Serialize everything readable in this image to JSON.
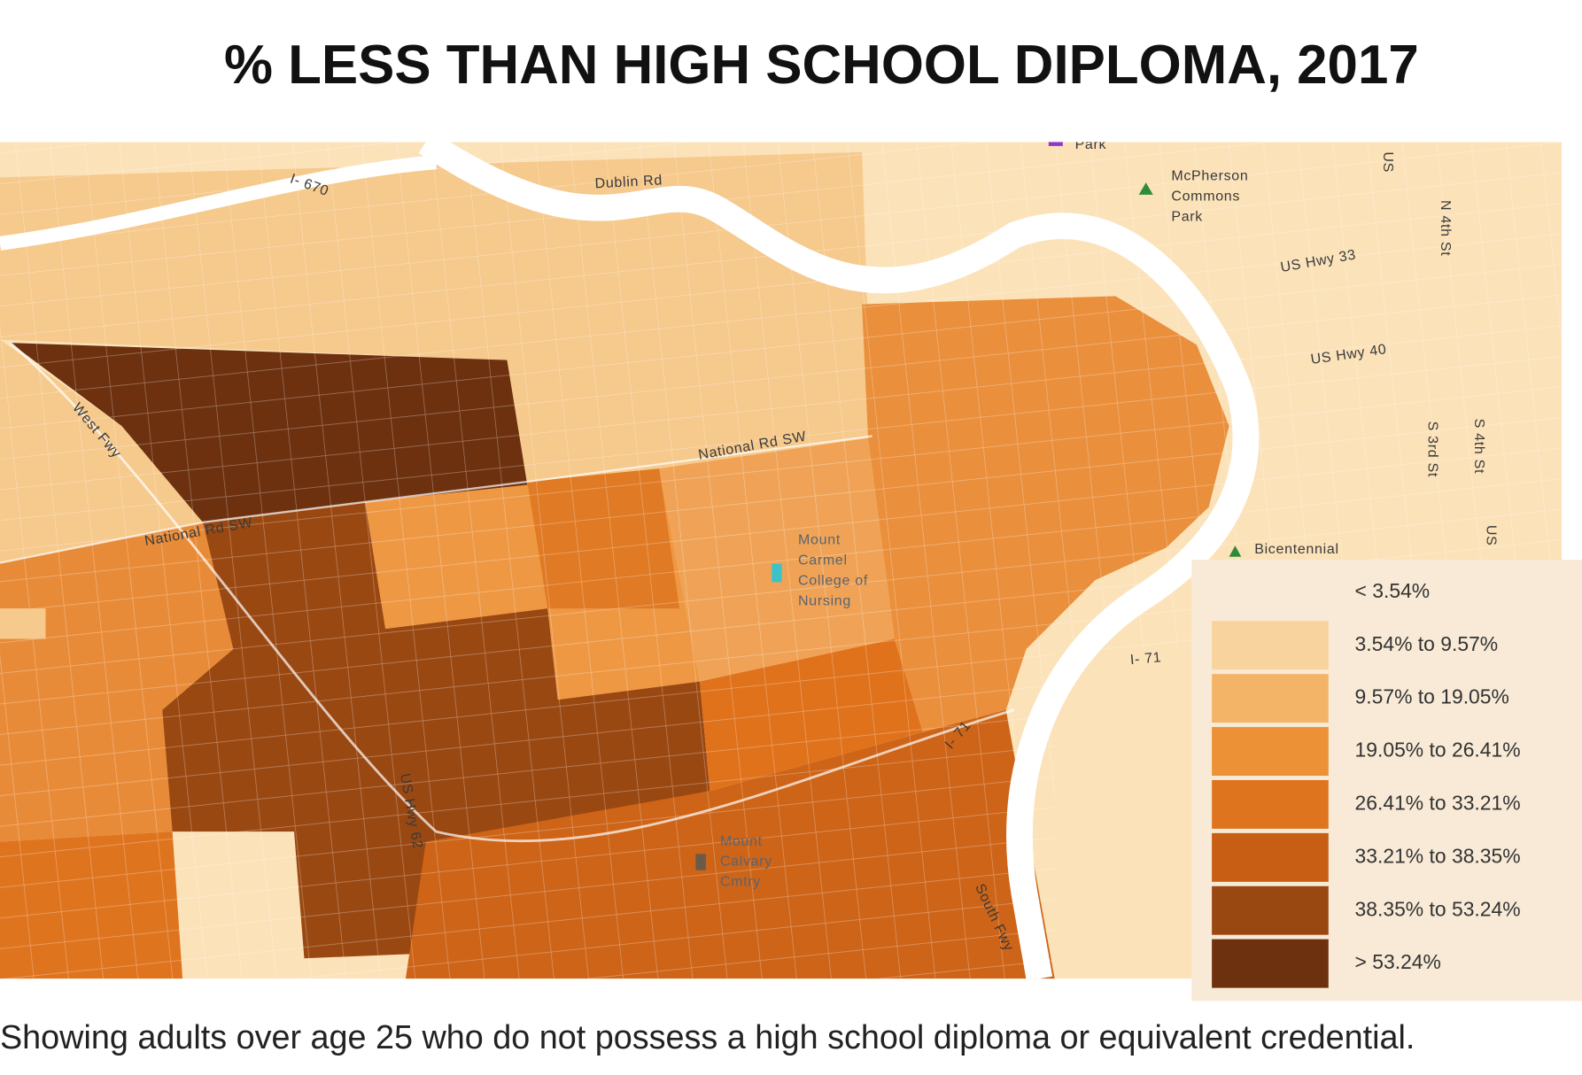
{
  "title": "% LESS THAN HIGH SCHOOL DIPLOMA, 2017",
  "caption": "Showing adults over age 25 who do not possess a high school diploma or equivalent credential.",
  "map_labels": [
    "I- 670",
    "Dublin Rd",
    "Park",
    "McPherson",
    "Commons",
    "Park",
    "US Hwy 33",
    "N 4th St",
    "US",
    "US Hwy 40",
    "S 3rd St",
    "S 4th St",
    "US",
    "West Fwy",
    "National Rd SW",
    "National Rd SW",
    "Mount",
    "Carmel",
    "College of",
    "Nursing",
    "Bicentennial",
    "I- 71",
    "I- 71",
    "US Hwy 62",
    "Mount",
    "Calvary",
    "Cmtry",
    "South Fwy"
  ],
  "legend": [
    {
      "label": "< 3.54%",
      "color": "#f8ead6"
    },
    {
      "label": "3.54% to 9.57%",
      "color": "#f8d39d"
    },
    {
      "label": "9.57% to 19.05%",
      "color": "#f3b468"
    },
    {
      "label": "19.05% to 26.41%",
      "color": "#ec9135"
    },
    {
      "label": "26.41% to 33.21%",
      "color": "#df741f"
    },
    {
      "label": "33.21% to 38.35%",
      "color": "#c75e14"
    },
    {
      "label": "38.35% to 53.24%",
      "color": "#9a4812"
    },
    {
      "label": "> 53.24%",
      "color": "#6d3110"
    }
  ]
}
